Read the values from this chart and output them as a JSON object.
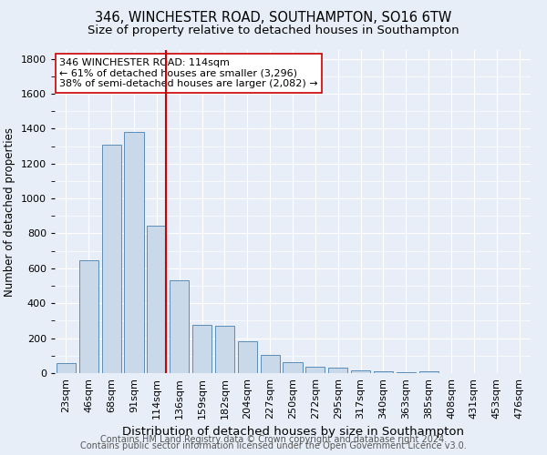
{
  "title1": "346, WINCHESTER ROAD, SOUTHAMPTON, SO16 6TW",
  "title2": "Size of property relative to detached houses in Southampton",
  "xlabel": "Distribution of detached houses by size in Southampton",
  "ylabel": "Number of detached properties",
  "categories": [
    "23sqm",
    "46sqm",
    "68sqm",
    "91sqm",
    "114sqm",
    "136sqm",
    "159sqm",
    "182sqm",
    "204sqm",
    "227sqm",
    "250sqm",
    "272sqm",
    "295sqm",
    "317sqm",
    "340sqm",
    "363sqm",
    "385sqm",
    "408sqm",
    "431sqm",
    "453sqm",
    "476sqm"
  ],
  "values": [
    55,
    645,
    1310,
    1380,
    845,
    530,
    275,
    270,
    185,
    105,
    65,
    35,
    30,
    18,
    8,
    5,
    10,
    0,
    0,
    0,
    0
  ],
  "bar_color": "#c9d9ea",
  "bar_edge_color": "#5b8db8",
  "vline_color": "#cc0000",
  "annotation_text": "346 WINCHESTER ROAD: 114sqm\n← 61% of detached houses are smaller (3,296)\n38% of semi-detached houses are larger (2,082) →",
  "annotation_box_color": "#ffffff",
  "annotation_box_edge": "#cc0000",
  "ylim": [
    0,
    1850
  ],
  "background_color": "#e8eef8",
  "plot_bg_color": "#e8eef8",
  "footer1": "Contains HM Land Registry data © Crown copyright and database right 2024.",
  "footer2": "Contains public sector information licensed under the Open Government Licence v3.0.",
  "title1_fontsize": 10.5,
  "title2_fontsize": 9.5,
  "xlabel_fontsize": 9.5,
  "ylabel_fontsize": 8.5,
  "tick_fontsize": 8,
  "footer_fontsize": 7,
  "annotation_fontsize": 8
}
